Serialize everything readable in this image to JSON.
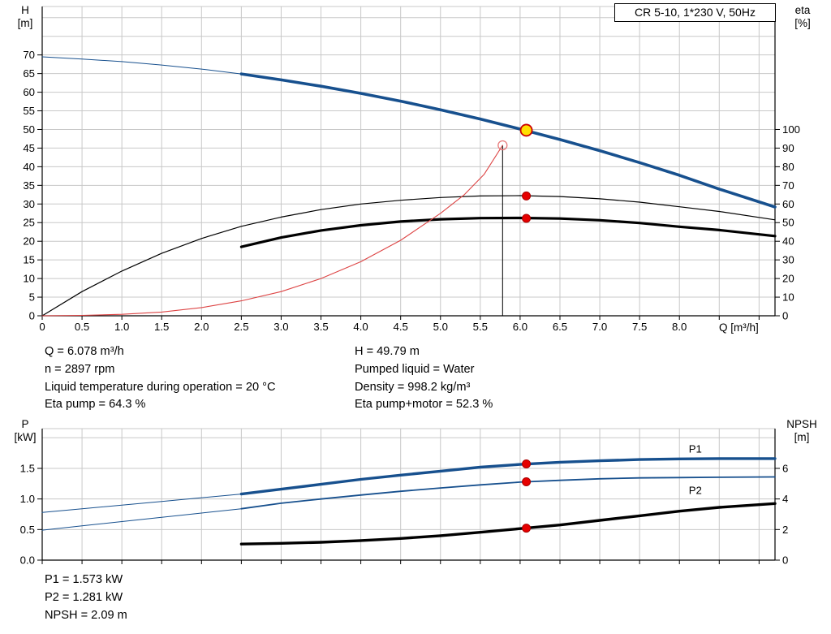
{
  "info_top": {
    "col1": [
      "Q = 6.078 m³/h",
      "n = 2897 rpm",
      "Liquid temperature during operation = 20 °C",
      "Eta pump = 64.3 %"
    ],
    "col2": [
      "H = 49.79 m",
      "Pumped liquid = Water",
      "Density = 998.2 kg/m³",
      "Eta pump+motor = 52.3 %"
    ]
  },
  "info_bottom": [
    "P1 = 1.573 kW",
    "P2 = 1.281 kW",
    "NPSH = 2.09 m"
  ],
  "colors": {
    "curve_blue": "#17508e",
    "curve_black": "#000000",
    "curve_red": "#dd4444",
    "marker_red": "#e60000",
    "marker_yellow": "#ffdf00",
    "grid": "#c8c8c8"
  },
  "chart_data": [
    {
      "id": "qh",
      "type": "line",
      "title": "CR 5-10, 1*230 V, 50Hz",
      "x_axis": {
        "label": "Q [m³/h]",
        "min": 0,
        "max": 9.2,
        "grid_step": 0.5,
        "show_labels": true,
        "tick_values": [
          0,
          0.5,
          1,
          1.5,
          2,
          2.5,
          3,
          3.5,
          4,
          4.5,
          5,
          5.5,
          6,
          6.5,
          7,
          7.5,
          8,
          8.5,
          9
        ],
        "tick_labels": [
          "0",
          "0.5",
          "1.0",
          "1.5",
          "2.0",
          "2.5",
          "3.0",
          "3.5",
          "4.0",
          "4.5",
          "5.0",
          "5.5",
          "6.0",
          "6.5",
          "7.0",
          "7.5",
          "8.0"
        ]
      },
      "y_left": {
        "label_lines": [
          "H",
          "[m]"
        ],
        "min": 0,
        "max": 83,
        "grid_step": 5,
        "tick_values": [
          0,
          5,
          10,
          15,
          20,
          25,
          30,
          35,
          40,
          45,
          50,
          55,
          60,
          65,
          70
        ],
        "tick_labels": [
          "0",
          "5",
          "10",
          "15",
          "20",
          "25",
          "30",
          "35",
          "40",
          "45",
          "50",
          "55",
          "60",
          "65",
          "70"
        ]
      },
      "y_right": {
        "label_lines": [
          "eta",
          "[%]"
        ],
        "min": 0,
        "max": 166,
        "tick_values": [
          0,
          10,
          20,
          30,
          40,
          50,
          60,
          70,
          80,
          90,
          100
        ],
        "tick_labels": [
          "0",
          "10",
          "20",
          "30",
          "40",
          "50",
          "60",
          "70",
          "80",
          "90",
          "100"
        ]
      },
      "series": [
        {
          "id": "qh-curve",
          "name": "Q-H curve",
          "axis": "left",
          "color": "#17508e",
          "width": 3.6,
          "thin_width": 1,
          "thick_from": 2.5,
          "points": [
            [
              0,
              69.5
            ],
            [
              0.5,
              68.9
            ],
            [
              1,
              68.2
            ],
            [
              1.5,
              67.3
            ],
            [
              2,
              66.2
            ],
            [
              2.5,
              64.9
            ],
            [
              3,
              63.3
            ],
            [
              3.5,
              61.6
            ],
            [
              4,
              59.7
            ],
            [
              4.5,
              57.6
            ],
            [
              5,
              55.3
            ],
            [
              5.5,
              52.8
            ],
            [
              6,
              50.1
            ],
            [
              6.5,
              47.3
            ],
            [
              7,
              44.3
            ],
            [
              7.5,
              41.1
            ],
            [
              8,
              37.7
            ],
            [
              8.5,
              34
            ],
            [
              9.2,
              29.2
            ]
          ]
        },
        {
          "id": "eta-pump-curve",
          "name": "Eta pump",
          "axis": "right",
          "color": "#000000",
          "width": 1.2,
          "points": [
            [
              0,
              0
            ],
            [
              0.5,
              13
            ],
            [
              1,
              24
            ],
            [
              1.5,
              33.5
            ],
            [
              2,
              41.5
            ],
            [
              2.5,
              48
            ],
            [
              3,
              53
            ],
            [
              3.5,
              57
            ],
            [
              4,
              60
            ],
            [
              4.5,
              62
            ],
            [
              5,
              63.5
            ],
            [
              5.5,
              64.3
            ],
            [
              6,
              64.5
            ],
            [
              6.5,
              64
            ],
            [
              7,
              62.8
            ],
            [
              7.5,
              61
            ],
            [
              8,
              58.5
            ],
            [
              8.5,
              56
            ],
            [
              9.2,
              51.5
            ]
          ]
        },
        {
          "id": "eta-pump-motor-curve",
          "name": "Eta pump+motor",
          "axis": "right",
          "color": "#000000",
          "width": 3.2,
          "points": [
            [
              2.5,
              37
            ],
            [
              3,
              42
            ],
            [
              3.5,
              45.8
            ],
            [
              4,
              48.6
            ],
            [
              4.5,
              50.6
            ],
            [
              5,
              51.8
            ],
            [
              5.5,
              52.4
            ],
            [
              6,
              52.5
            ],
            [
              6.5,
              52.2
            ],
            [
              7,
              51.3
            ],
            [
              7.5,
              49.8
            ],
            [
              8,
              47.8
            ],
            [
              8.5,
              46
            ],
            [
              9.2,
              42.8
            ]
          ]
        },
        {
          "id": "red-curve",
          "name": "Reference curve",
          "axis": "right",
          "color": "#dd4444",
          "width": 1.1,
          "points": [
            [
              0,
              0
            ],
            [
              0.5,
              0.2
            ],
            [
              1,
              0.8
            ],
            [
              1.5,
              2
            ],
            [
              2,
              4.4
            ],
            [
              2.5,
              8
            ],
            [
              3,
              13
            ],
            [
              3.5,
              20
            ],
            [
              4,
              29
            ],
            [
              4.5,
              40.5
            ],
            [
              5,
              55
            ],
            [
              5.3,
              65
            ],
            [
              5.55,
              76
            ],
            [
              5.78,
              91.5
            ]
          ]
        }
      ],
      "vline": {
        "x": 5.78,
        "y": 91.5,
        "axis": "right"
      },
      "markers": [
        {
          "kind": "duty-point-qh",
          "x": 6.078,
          "y": 49.79,
          "axis": "left",
          "r": 7,
          "fill": "#ffdf00",
          "stroke": "#cc0000",
          "sw": 1.8
        },
        {
          "kind": "duty-point-eta-pump",
          "x": 6.078,
          "y": 64.3,
          "axis": "right",
          "r": 5,
          "fill": "#e60000",
          "stroke": "#aa0000",
          "sw": 1
        },
        {
          "kind": "duty-point-eta-pump-motor",
          "x": 6.078,
          "y": 52.3,
          "axis": "right",
          "r": 5,
          "fill": "#e60000",
          "stroke": "#aa0000",
          "sw": 1
        },
        {
          "kind": "reference-point-open",
          "x": 5.78,
          "y": 91.5,
          "axis": "right",
          "r": 5.5,
          "fill": "none",
          "stroke": "#e87878",
          "sw": 1.3
        }
      ],
      "labels": []
    },
    {
      "id": "power",
      "type": "line",
      "title": "",
      "x_axis": {
        "label": "",
        "min": 0,
        "max": 9.2,
        "grid_step": 0.5,
        "show_labels": false,
        "tick_values": [
          0,
          0.5,
          1,
          1.5,
          2,
          2.5,
          3,
          3.5,
          4,
          4.5,
          5,
          5.5,
          6,
          6.5,
          7,
          7.5,
          8,
          8.5,
          9
        ],
        "tick_labels": []
      },
      "y_left": {
        "label_lines": [
          "P",
          "[kW]"
        ],
        "min": 0,
        "max": 2.15,
        "grid_step": 0.5,
        "tick_values": [
          0,
          0.5,
          1,
          1.5
        ],
        "tick_labels": [
          "0.0",
          "0.5",
          "1.0",
          "1.5"
        ]
      },
      "y_right": {
        "label_lines": [
          "NPSH",
          "[m]"
        ],
        "min": 0,
        "max": 8.6,
        "tick_values": [
          0,
          2,
          4,
          6
        ],
        "tick_labels": [
          "0",
          "2",
          "4",
          "6"
        ]
      },
      "series": [
        {
          "id": "p1-curve",
          "name": "P1",
          "axis": "left",
          "color": "#17508e",
          "width": 3.4,
          "thin_width": 1,
          "thick_from": 2.5,
          "points": [
            [
              0,
              0.78
            ],
            [
              0.5,
              0.84
            ],
            [
              1,
              0.9
            ],
            [
              1.5,
              0.96
            ],
            [
              2,
              1.02
            ],
            [
              2.5,
              1.08
            ],
            [
              3,
              1.16
            ],
            [
              3.5,
              1.24
            ],
            [
              4,
              1.32
            ],
            [
              4.5,
              1.39
            ],
            [
              5,
              1.455
            ],
            [
              5.5,
              1.52
            ],
            [
              6,
              1.565
            ],
            [
              6.5,
              1.6
            ],
            [
              7,
              1.625
            ],
            [
              7.5,
              1.645
            ],
            [
              8,
              1.655
            ],
            [
              8.5,
              1.66
            ],
            [
              9.2,
              1.66
            ]
          ]
        },
        {
          "id": "p2-curve",
          "name": "P2",
          "axis": "left",
          "color": "#17508e",
          "width": 1.8,
          "thin_width": 1,
          "thick_from": 2.5,
          "points": [
            [
              0,
              0.49
            ],
            [
              0.5,
              0.56
            ],
            [
              1,
              0.63
            ],
            [
              1.5,
              0.7
            ],
            [
              2,
              0.77
            ],
            [
              2.5,
              0.84
            ],
            [
              3,
              0.93
            ],
            [
              3.5,
              1.0
            ],
            [
              4,
              1.065
            ],
            [
              4.5,
              1.125
            ],
            [
              5,
              1.18
            ],
            [
              5.5,
              1.23
            ],
            [
              6,
              1.275
            ],
            [
              6.5,
              1.305
            ],
            [
              7,
              1.33
            ],
            [
              7.5,
              1.345
            ],
            [
              8,
              1.35
            ],
            [
              8.5,
              1.355
            ],
            [
              9.2,
              1.36
            ]
          ]
        },
        {
          "id": "npsh-curve",
          "name": "NPSH",
          "axis": "right",
          "color": "#000000",
          "width": 3.4,
          "points": [
            [
              2.5,
              1.05
            ],
            [
              3,
              1.1
            ],
            [
              3.5,
              1.17
            ],
            [
              4,
              1.28
            ],
            [
              4.5,
              1.42
            ],
            [
              5,
              1.6
            ],
            [
              5.5,
              1.82
            ],
            [
              6,
              2.06
            ],
            [
              6.5,
              2.3
            ],
            [
              7,
              2.6
            ],
            [
              7.5,
              2.9
            ],
            [
              8,
              3.2
            ],
            [
              8.5,
              3.45
            ],
            [
              9.2,
              3.7
            ]
          ]
        }
      ],
      "markers": [
        {
          "kind": "duty-point-p1",
          "x": 6.078,
          "y": 1.573,
          "axis": "left",
          "r": 5,
          "fill": "#e60000",
          "stroke": "#aa0000",
          "sw": 1
        },
        {
          "kind": "duty-point-p2",
          "x": 6.078,
          "y": 1.281,
          "axis": "left",
          "r": 5,
          "fill": "#e60000",
          "stroke": "#aa0000",
          "sw": 1
        },
        {
          "kind": "duty-point-npsh",
          "x": 6.078,
          "y": 2.09,
          "axis": "right",
          "r": 5,
          "fill": "#e60000",
          "stroke": "#aa0000",
          "sw": 1
        }
      ],
      "labels": [
        {
          "text": "P1",
          "x": 8.2,
          "y": 1.76,
          "axis": "left",
          "color": "#17508e"
        },
        {
          "text": "P2",
          "x": 8.2,
          "y": 1.08,
          "axis": "left",
          "color": "#17508e"
        }
      ]
    }
  ]
}
